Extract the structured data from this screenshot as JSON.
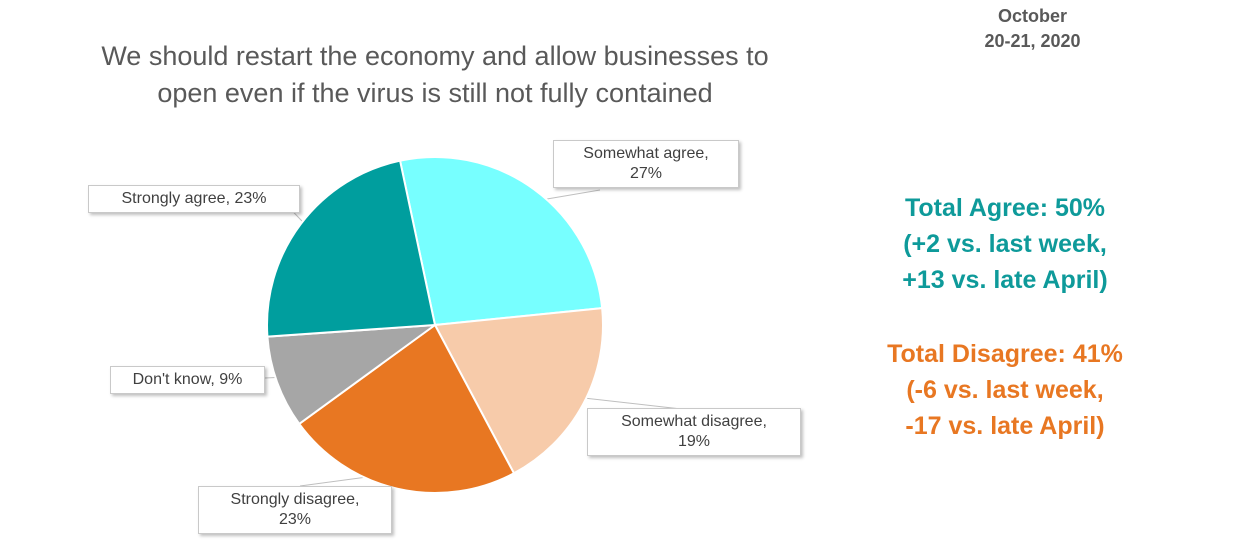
{
  "header": {
    "title_line1": "We should restart the economy and allow businesses to",
    "title_line2": "open even if the virus is still not fully contained",
    "date_line1": "October",
    "date_line2": "20-21, 2020"
  },
  "summary": {
    "agree": {
      "line1": "Total Agree: 50%",
      "line2": "(+2 vs. last week,",
      "line3": "+13 vs. late April)",
      "color": "#0e9a9a"
    },
    "disagree": {
      "line1": "Total Disagree: 41%",
      "line2": "(-6 vs. last week,",
      "line3": "-17 vs. late April)",
      "color": "#e87722"
    }
  },
  "callouts": {
    "somewhat_agree": {
      "line1": "Somewhat agree,",
      "line2": "27%"
    },
    "strongly_agree": {
      "line1": "Strongly agree, 23%"
    },
    "dont_know": {
      "line1": "Don't know, 9%"
    },
    "somewhat_disagree": {
      "line1": "Somewhat disagree,",
      "line2": "19%"
    },
    "strongly_disagree": {
      "line1": "Strongly disagree,",
      "line2": "23%"
    }
  },
  "chart_data": {
    "type": "pie",
    "title": "We should restart the economy and allow businesses to open even if the virus is still not fully contained",
    "slices": [
      {
        "label": "Somewhat agree",
        "value": 27,
        "color": "#77ffff"
      },
      {
        "label": "Somewhat disagree",
        "value": 19,
        "color": "#f7cbaa"
      },
      {
        "label": "Strongly disagree",
        "value": 23,
        "color": "#e87722"
      },
      {
        "label": "Don't know",
        "value": 9,
        "color": "#a6a6a6"
      },
      {
        "label": "Strongly agree",
        "value": 23,
        "color": "#009e9e"
      }
    ],
    "legend": "none"
  }
}
